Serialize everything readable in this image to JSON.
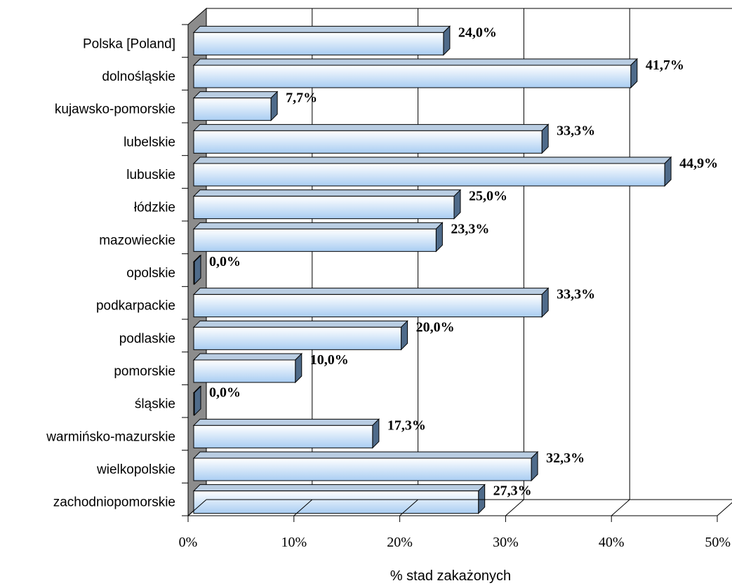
{
  "chart_data": {
    "type": "bar",
    "orientation": "horizontal",
    "three_d": true,
    "categories": [
      "Polska [Poland]",
      "dolnośląskie",
      "kujawsko-pomorskie",
      "lubelskie",
      "lubuskie",
      "łódzkie",
      "mazowieckie",
      "opolskie",
      "podkarpackie",
      "podlaskie",
      "pomorskie",
      "śląskie",
      "warmińsko-mazurskie",
      "wielkopolskie",
      "zachodniopomorskie"
    ],
    "values": [
      24.0,
      41.7,
      7.7,
      33.3,
      44.9,
      25.0,
      23.3,
      0.0,
      33.3,
      20.0,
      10.0,
      0.0,
      17.3,
      32.3,
      27.3
    ],
    "value_labels": [
      "24,0%",
      "41,7%",
      "7,7%",
      "33,3%",
      "44,9%",
      "25,0%",
      "23,3%",
      "0,0%",
      "33,3%",
      "20,0%",
      "10,0%",
      "0,0%",
      "17,3%",
      "32,3%",
      "27,3%"
    ],
    "xlabel": "% stad zakażonych",
    "ylabel": "",
    "xlim": [
      0,
      50
    ],
    "x_ticks": [
      "0%",
      "10%",
      "20%",
      "30%",
      "40%",
      "50%"
    ],
    "grid": true,
    "legend": "none",
    "colors": {
      "bar_front_top": "#ffffff",
      "bar_front_bottom": "#a9cdf2",
      "bar_top": "#b9cde2",
      "bar_side": "#4f6b8a",
      "wall": "#8c8c8c",
      "grid": "#000000"
    }
  }
}
